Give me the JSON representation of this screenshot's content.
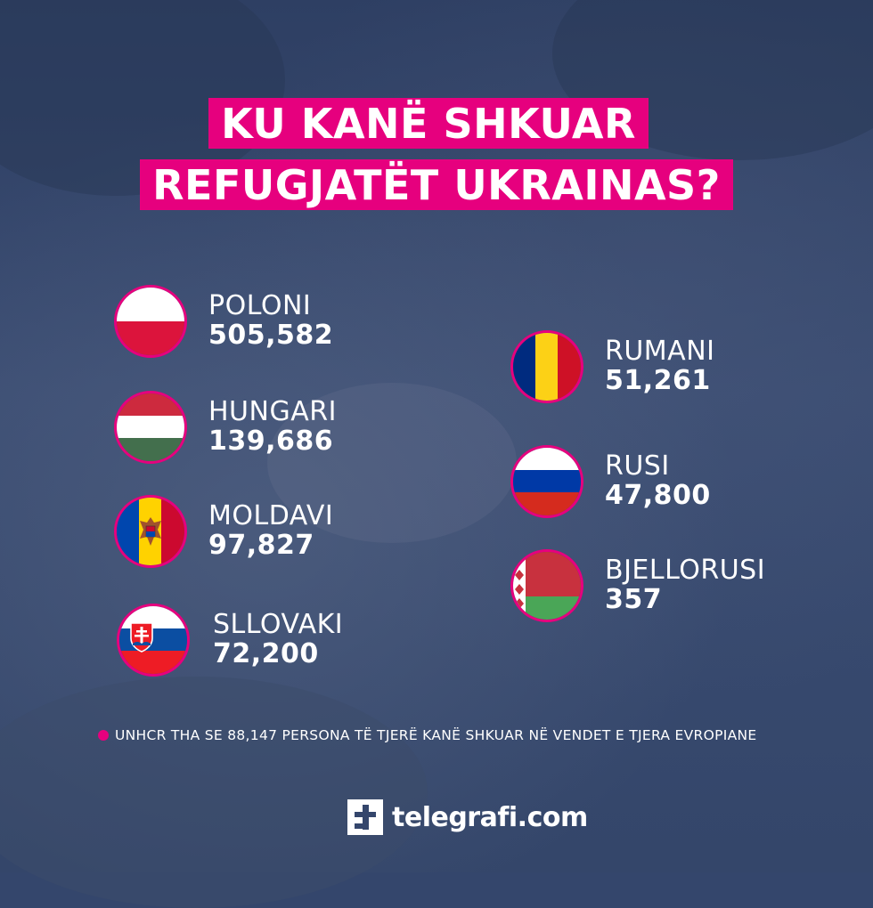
{
  "title": {
    "line1": "KU KANË SHKUAR",
    "line2": "REFUGJATËT UKRAINAS?"
  },
  "countries_left": [
    {
      "name": "POLONI",
      "value": "505,582",
      "flag": "poland-flag"
    },
    {
      "name": "HUNGARI",
      "value": "139,686",
      "flag": "hungary-flag"
    },
    {
      "name": "MOLDAVI",
      "value": "97,827",
      "flag": "moldova-flag"
    },
    {
      "name": "SLLOVAKI",
      "value": "72,200",
      "flag": "slovakia-flag"
    }
  ],
  "countries_right": [
    {
      "name": "RUMANI",
      "value": "51,261",
      "flag": "romania-flag"
    },
    {
      "name": "RUSI",
      "value": "47,800",
      "flag": "russia-flag"
    },
    {
      "name": "BJELLORUSI",
      "value": "357",
      "flag": "belarus-flag"
    }
  ],
  "footnote": "UNHCR THA SE 88,147 PERSONA TË TJERË KANË SHKUAR NË VENDET E TJERA EVROPIANE",
  "brand": "telegrafi.com",
  "colors": {
    "accent": "#e6007e",
    "background": "#34466c",
    "text": "#ffffff"
  }
}
